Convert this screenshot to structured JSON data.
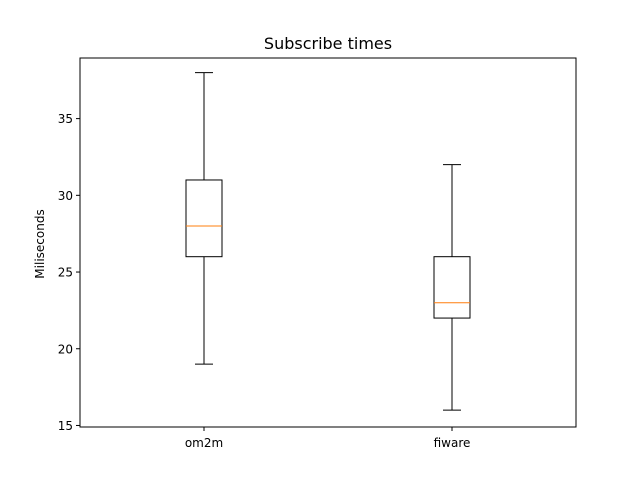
{
  "chart_data": {
    "type": "box",
    "title": "Subscribe times",
    "xlabel": "",
    "ylabel": "Miliseconds",
    "categories": [
      "om2m",
      "fiware"
    ],
    "boxes": [
      {
        "label": "om2m",
        "whisker_low": 19,
        "q1": 26,
        "median": 28,
        "q3": 31,
        "whisker_high": 38
      },
      {
        "label": "fiware",
        "whisker_low": 16,
        "q1": 22,
        "median": 23,
        "q3": 26,
        "whisker_high": 32
      }
    ],
    "yticks": [
      15,
      20,
      25,
      30,
      35
    ],
    "ylim": [
      14.9,
      38.95
    ],
    "grid": false,
    "colors": {
      "box": "#000000",
      "median": "#ff7f0e"
    }
  }
}
